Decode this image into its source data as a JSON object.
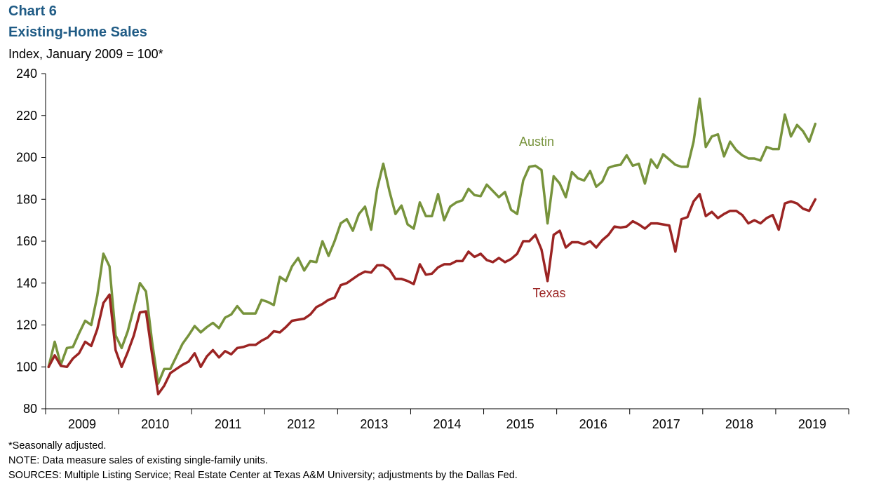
{
  "header": {
    "chart_number": "Chart 6",
    "title": "Existing-Home Sales",
    "subtitle": "Index, January 2009 = 100*"
  },
  "footnotes": {
    "note1": "*Seasonally adjusted.",
    "note2": "NOTE:  Data measure sales of existing single-family units.",
    "note3": "SOURCES:  Multiple Listing Service; Real Estate Center at Texas A&M University;  adjustments  by the Dallas Fed."
  },
  "colors": {
    "austin": "#77933c",
    "texas": "#9b2423",
    "axis": "#000000"
  },
  "chart_data": {
    "type": "line",
    "title": "Existing-Home Sales",
    "ylabel": "Index, January 2009 = 100*",
    "xlabel": "",
    "ylim": [
      80,
      240
    ],
    "yticks": [
      80,
      100,
      120,
      140,
      160,
      180,
      200,
      220,
      240
    ],
    "grid": false,
    "x_start": "2009-01",
    "x_frequency": "monthly",
    "year_labels": [
      "2009",
      "2010",
      "2011",
      "2012",
      "2013",
      "2014",
      "2015",
      "2016",
      "2017",
      "2018",
      "2019"
    ],
    "series": [
      {
        "name": "Austin",
        "values": [
          100,
          112,
          101,
          109,
          109.5,
          116,
          122,
          120,
          134,
          154,
          148,
          115,
          109,
          117,
          128,
          140,
          136,
          112,
          92,
          99,
          99,
          105,
          111,
          115,
          119.5,
          116.5,
          119,
          121,
          118.5,
          123.5,
          125,
          129,
          125.5,
          125.5,
          125.5,
          132,
          131,
          129.5,
          143,
          141,
          148,
          152,
          146,
          150.5,
          150,
          160,
          153,
          160,
          168.5,
          170.5,
          165,
          173,
          176.5,
          165.5,
          185,
          197,
          184,
          173,
          177,
          168,
          166,
          178.5,
          172,
          172,
          182.5,
          170,
          176.5,
          178.5,
          179.5,
          185,
          182,
          181.5,
          187,
          184,
          181,
          183.5,
          175,
          173,
          189,
          195.5,
          196,
          194,
          168.5,
          191,
          187.5,
          181,
          193,
          190,
          189,
          193.5,
          186,
          188.5,
          195,
          196,
          196.5,
          201,
          196,
          197,
          187.5,
          199,
          195,
          201.5,
          199,
          196.5,
          195.5,
          195.5,
          207.5,
          228,
          205,
          210,
          211,
          200.5,
          207.5,
          203.5,
          201,
          199.5,
          199.5,
          198.5,
          205,
          204,
          204,
          220.5,
          210,
          215.5,
          212.5,
          207.5,
          216
        ],
        "label": "Austin"
      },
      {
        "name": "Texas",
        "values": [
          100,
          105.5,
          100.5,
          100,
          104,
          106.5,
          112,
          110,
          118,
          130.5,
          134.5,
          108,
          100,
          107,
          115,
          126,
          126.5,
          106,
          87,
          91,
          97,
          99,
          101,
          102.5,
          106.5,
          100,
          105,
          108,
          104.5,
          107.5,
          106,
          109,
          109.5,
          110.5,
          110.5,
          112.5,
          114,
          117,
          116.5,
          119,
          122,
          122.5,
          123,
          125,
          128.5,
          130,
          132,
          133,
          139,
          140,
          142,
          144,
          145.5,
          145,
          148.5,
          148.5,
          146.5,
          142,
          142,
          141,
          139.5,
          149,
          144,
          144.5,
          147.5,
          149,
          149,
          150.5,
          150.5,
          155,
          152.5,
          154,
          151,
          150,
          152,
          150,
          151.5,
          154,
          160,
          160,
          163,
          156,
          141,
          163,
          165,
          157,
          159.5,
          159.5,
          158.5,
          160,
          157,
          160.5,
          163,
          167,
          166.5,
          167,
          169.5,
          168,
          166,
          168.5,
          168.5,
          168,
          167.5,
          155,
          170.5,
          171.5,
          179,
          182.5,
          172,
          174,
          171,
          173,
          174.5,
          174.5,
          172.5,
          168.5,
          170,
          168.5,
          171,
          172.5,
          165.5,
          178,
          179,
          178,
          175.5,
          174.5,
          180
        ],
        "label": "Texas"
      }
    ],
    "annotations": [
      "Austin",
      "Texas"
    ]
  }
}
